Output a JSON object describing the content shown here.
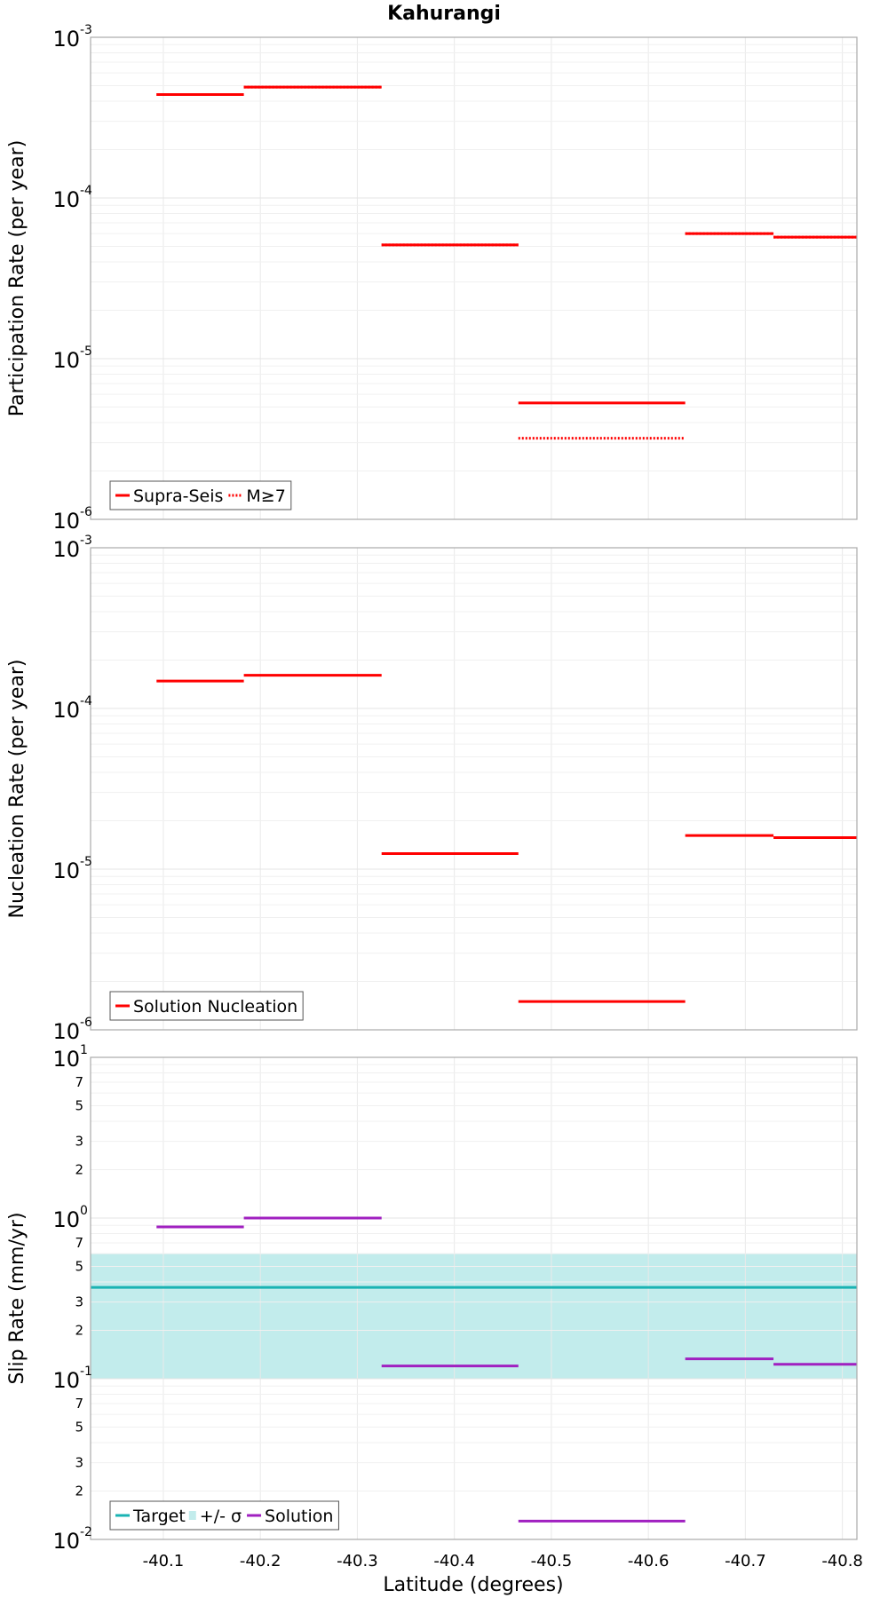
{
  "chart_data": {
    "title": "Kahurangi",
    "xlabel": "Latitude (degrees)",
    "xlim": [
      -40.025,
      -40.815
    ],
    "xticks": [
      -40.1,
      -40.2,
      -40.3,
      -40.4,
      -40.5,
      -40.6,
      -40.7,
      -40.8
    ],
    "xtick_labels": [
      "-40.1",
      "-40.2",
      "-40.3",
      "-40.4",
      "-40.5",
      "-40.6",
      "-40.7",
      "-40.8"
    ],
    "grid": true,
    "panels": [
      {
        "type": "line",
        "ylabel": "Participation Rate (per year)",
        "yscale": "log",
        "ylim": [
          1e-06,
          0.001
        ],
        "legend": {
          "placement": "bottom-left",
          "entries": [
            "Supra-Seis",
            "M≥7"
          ]
        },
        "series": [
          {
            "name": "Supra-Seis",
            "color": "#ff0000",
            "style": "solid",
            "segments": [
              [
                -40.093,
                -40.183,
                0.00044
              ],
              [
                -40.183,
                -40.325,
                0.00049
              ],
              [
                -40.325,
                -40.466,
                5.1e-05
              ],
              [
                -40.466,
                -40.638,
                5.3e-06
              ],
              [
                -40.638,
                -40.729,
                6e-05
              ],
              [
                -40.729,
                -40.815,
                5.7e-05
              ]
            ]
          },
          {
            "name": "M≥7",
            "color": "#ff0000",
            "style": "dotted",
            "segments": [
              [
                -40.093,
                -40.183,
                0.00044
              ],
              [
                -40.183,
                -40.325,
                0.00049
              ],
              [
                -40.325,
                -40.466,
                5.1e-05
              ],
              [
                -40.466,
                -40.638,
                3.2e-06
              ],
              [
                -40.638,
                -40.729,
                6e-05
              ],
              [
                -40.729,
                -40.815,
                5.7e-05
              ]
            ]
          }
        ]
      },
      {
        "type": "line",
        "ylabel": "Nucleation Rate (per year)",
        "yscale": "log",
        "ylim": [
          1e-06,
          0.001
        ],
        "legend": {
          "placement": "bottom-left",
          "entries": [
            "Solution Nucleation"
          ]
        },
        "series": [
          {
            "name": "Solution Nucleation",
            "color": "#ff0000",
            "style": "solid",
            "segments": [
              [
                -40.093,
                -40.183,
                0.000148
              ],
              [
                -40.183,
                -40.325,
                0.000161
              ],
              [
                -40.325,
                -40.466,
                1.25e-05
              ],
              [
                -40.466,
                -40.638,
                1.5e-06
              ],
              [
                -40.638,
                -40.729,
                1.62e-05
              ],
              [
                -40.729,
                -40.815,
                1.57e-05
              ]
            ]
          }
        ]
      },
      {
        "type": "line",
        "ylabel": "Slip Rate (mm/yr)",
        "yscale": "log",
        "ylim": [
          0.01,
          10
        ],
        "minor_tick_labels": [
          "2",
          "3",
          "5",
          "7"
        ],
        "legend": {
          "placement": "bottom-left",
          "entries": [
            "Target",
            "+/- σ",
            "Solution"
          ]
        },
        "band": {
          "name": "+/- σ",
          "low": 0.1,
          "high": 0.6,
          "color": "#c2ecec"
        },
        "series": [
          {
            "name": "Target",
            "color": "#1ab3b3",
            "style": "solid",
            "segments": [
              [
                -40.025,
                -40.815,
                0.37
              ]
            ]
          },
          {
            "name": "Solution",
            "color": "#a020c0",
            "style": "solid",
            "segments": [
              [
                -40.093,
                -40.183,
                0.88
              ],
              [
                -40.183,
                -40.325,
                1.0
              ],
              [
                -40.325,
                -40.466,
                0.12
              ],
              [
                -40.466,
                -40.638,
                0.013
              ],
              [
                -40.638,
                -40.729,
                0.133
              ],
              [
                -40.729,
                -40.815,
                0.123
              ]
            ]
          }
        ]
      }
    ]
  }
}
